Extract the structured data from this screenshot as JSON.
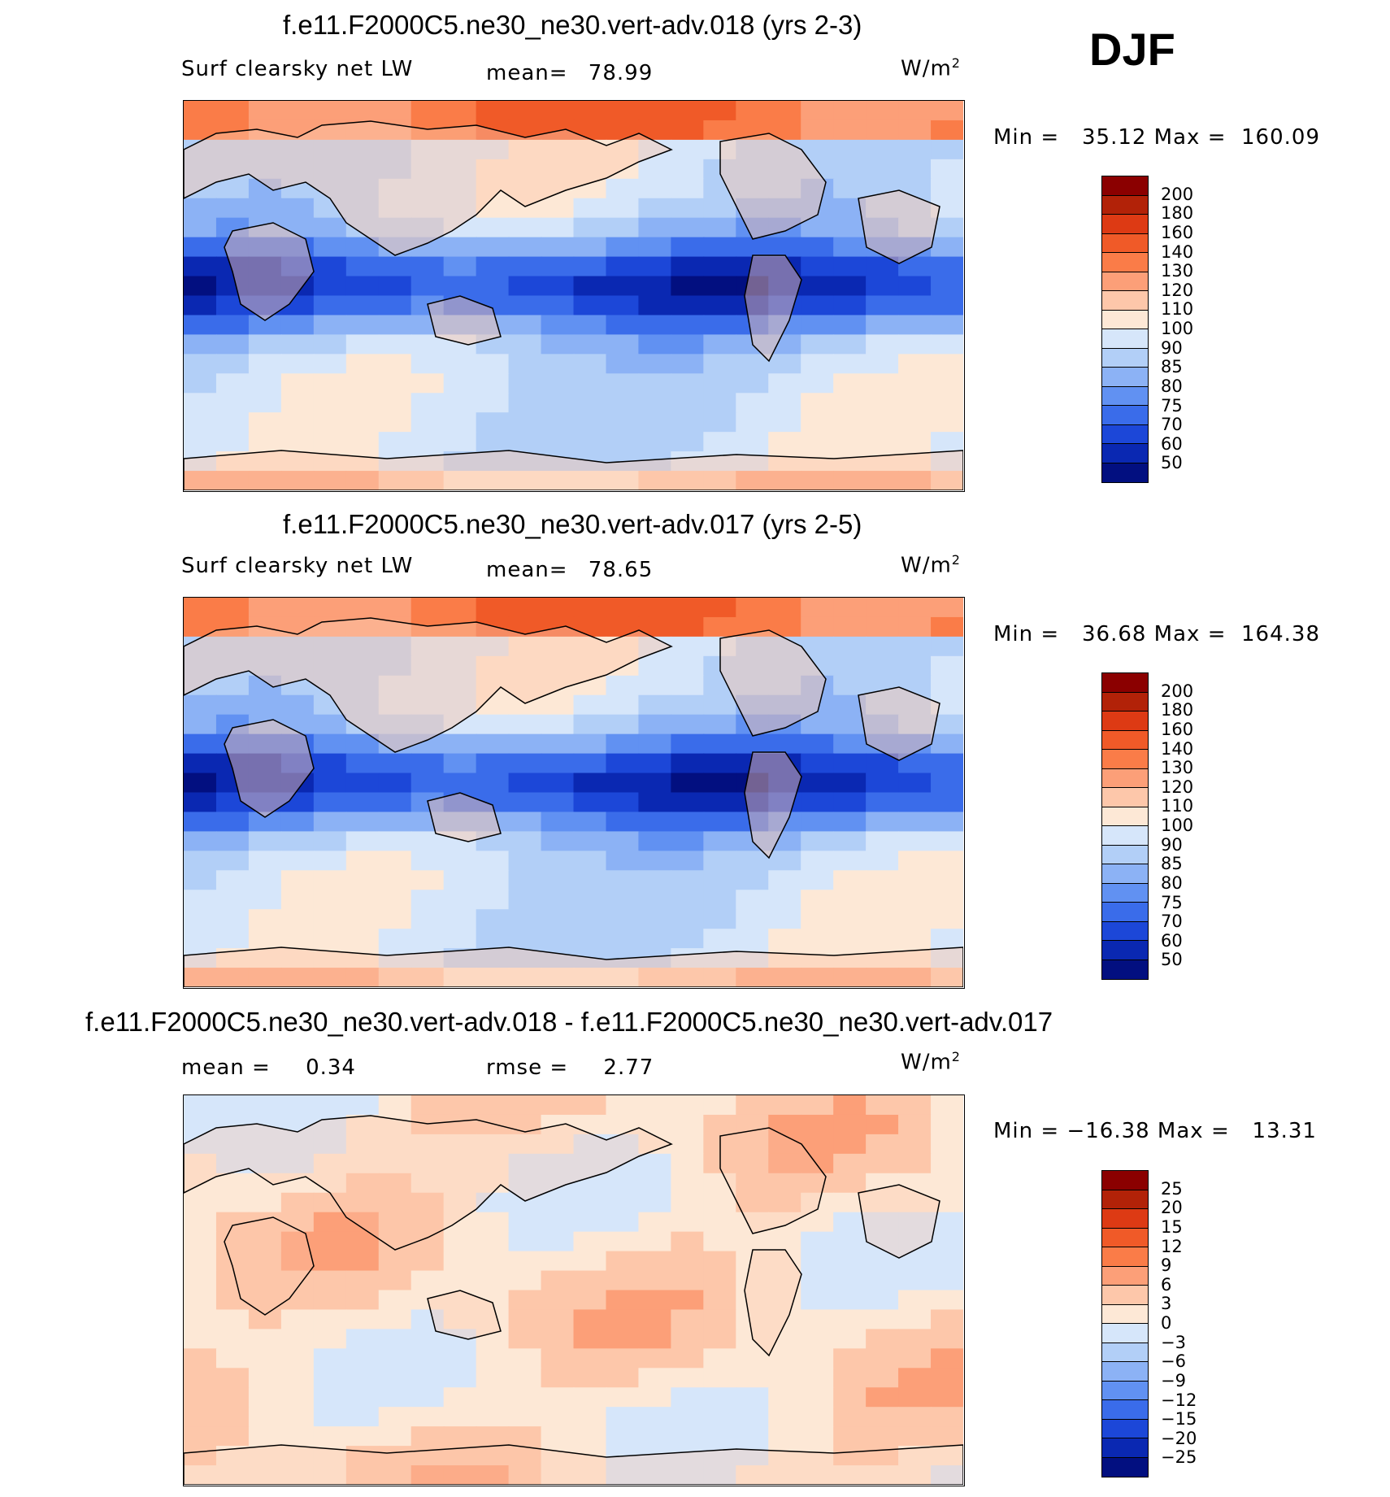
{
  "season": "DJF",
  "panels": [
    {
      "title": "f.e11.F2000C5.ne30_ne30.vert-adv.018 (yrs 2-3)",
      "variable": "Surf clearsky net LW",
      "stat_label": "mean=",
      "stat_value": "78.99",
      "units": "W/m",
      "units_exp": "2",
      "minmax": "Min =   35.12 Max =  160.09"
    },
    {
      "title": "f.e11.F2000C5.ne30_ne30.vert-adv.017 (yrs 2-5)",
      "variable": "Surf clearsky net LW",
      "stat_label": "mean=",
      "stat_value": "78.65",
      "units": "W/m",
      "units_exp": "2",
      "minmax": "Min =   36.68 Max =  164.38"
    },
    {
      "title": "f.e11.F2000C5.ne30_ne30.vert-adv.018 - f.e11.F2000C5.ne30_ne30.vert-adv.017",
      "mean_label": "mean =",
      "mean_value": "0.34",
      "rmse_label": "rmse =",
      "rmse_value": "2.77",
      "units": "W/m",
      "units_exp": "2",
      "minmax": "Min = −16.38 Max =   13.31"
    }
  ],
  "chart_data": [
    {
      "type": "heatmap",
      "title": "f.e11.F2000C5.ne30_ne30.vert-adv.018 (yrs 2-3)",
      "variable": "Surf clearsky net LW",
      "units": "W/m^2",
      "mean": 78.99,
      "min": 35.12,
      "max": 160.09,
      "levels": [
        "200",
        "180",
        "160",
        "140",
        "130",
        "120",
        "110",
        "100",
        "90",
        "85",
        "80",
        "75",
        "70",
        "60",
        "50"
      ],
      "colors": [
        "#8b0000",
        "#b22208",
        "#dd3a14",
        "#f05a28",
        "#fa7c48",
        "#fc9f78",
        "#fdc7aa",
        "#fde8d6",
        "#d6e6fa",
        "#b2cff7",
        "#8cb2f5",
        "#6191f2",
        "#3a6cea",
        "#1c47d8",
        "#0a28b2",
        "#020f80"
      ]
    },
    {
      "type": "heatmap",
      "title": "f.e11.F2000C5.ne30_ne30.vert-adv.017 (yrs 2-5)",
      "variable": "Surf clearsky net LW",
      "units": "W/m^2",
      "mean": 78.65,
      "min": 36.68,
      "max": 164.38,
      "levels": [
        "200",
        "180",
        "160",
        "140",
        "130",
        "120",
        "110",
        "100",
        "90",
        "85",
        "80",
        "75",
        "70",
        "60",
        "50"
      ],
      "colors": [
        "#8b0000",
        "#b22208",
        "#dd3a14",
        "#f05a28",
        "#fa7c48",
        "#fc9f78",
        "#fdc7aa",
        "#fde8d6",
        "#d6e6fa",
        "#b2cff7",
        "#8cb2f5",
        "#6191f2",
        "#3a6cea",
        "#1c47d8",
        "#0a28b2",
        "#020f80"
      ]
    },
    {
      "type": "heatmap",
      "title": "f.e11.F2000C5.ne30_ne30.vert-adv.018 - f.e11.F2000C5.ne30_ne30.vert-adv.017",
      "units": "W/m^2",
      "mean": 0.34,
      "rmse": 2.77,
      "min": -16.38,
      "max": 13.31,
      "levels": [
        "25",
        "20",
        "15",
        "12",
        "9",
        "6",
        "3",
        "0",
        "−3",
        "−6",
        "−9",
        "−12",
        "−15",
        "−20",
        "−25"
      ],
      "colors": [
        "#8b0000",
        "#b22208",
        "#dd3a14",
        "#f05a28",
        "#fa7c48",
        "#fc9f78",
        "#fdc7aa",
        "#fde8d6",
        "#d6e6fa",
        "#b2cff7",
        "#8cb2f5",
        "#6191f2",
        "#3a6cea",
        "#1c47d8",
        "#0a28b2",
        "#020f80"
      ]
    }
  ]
}
